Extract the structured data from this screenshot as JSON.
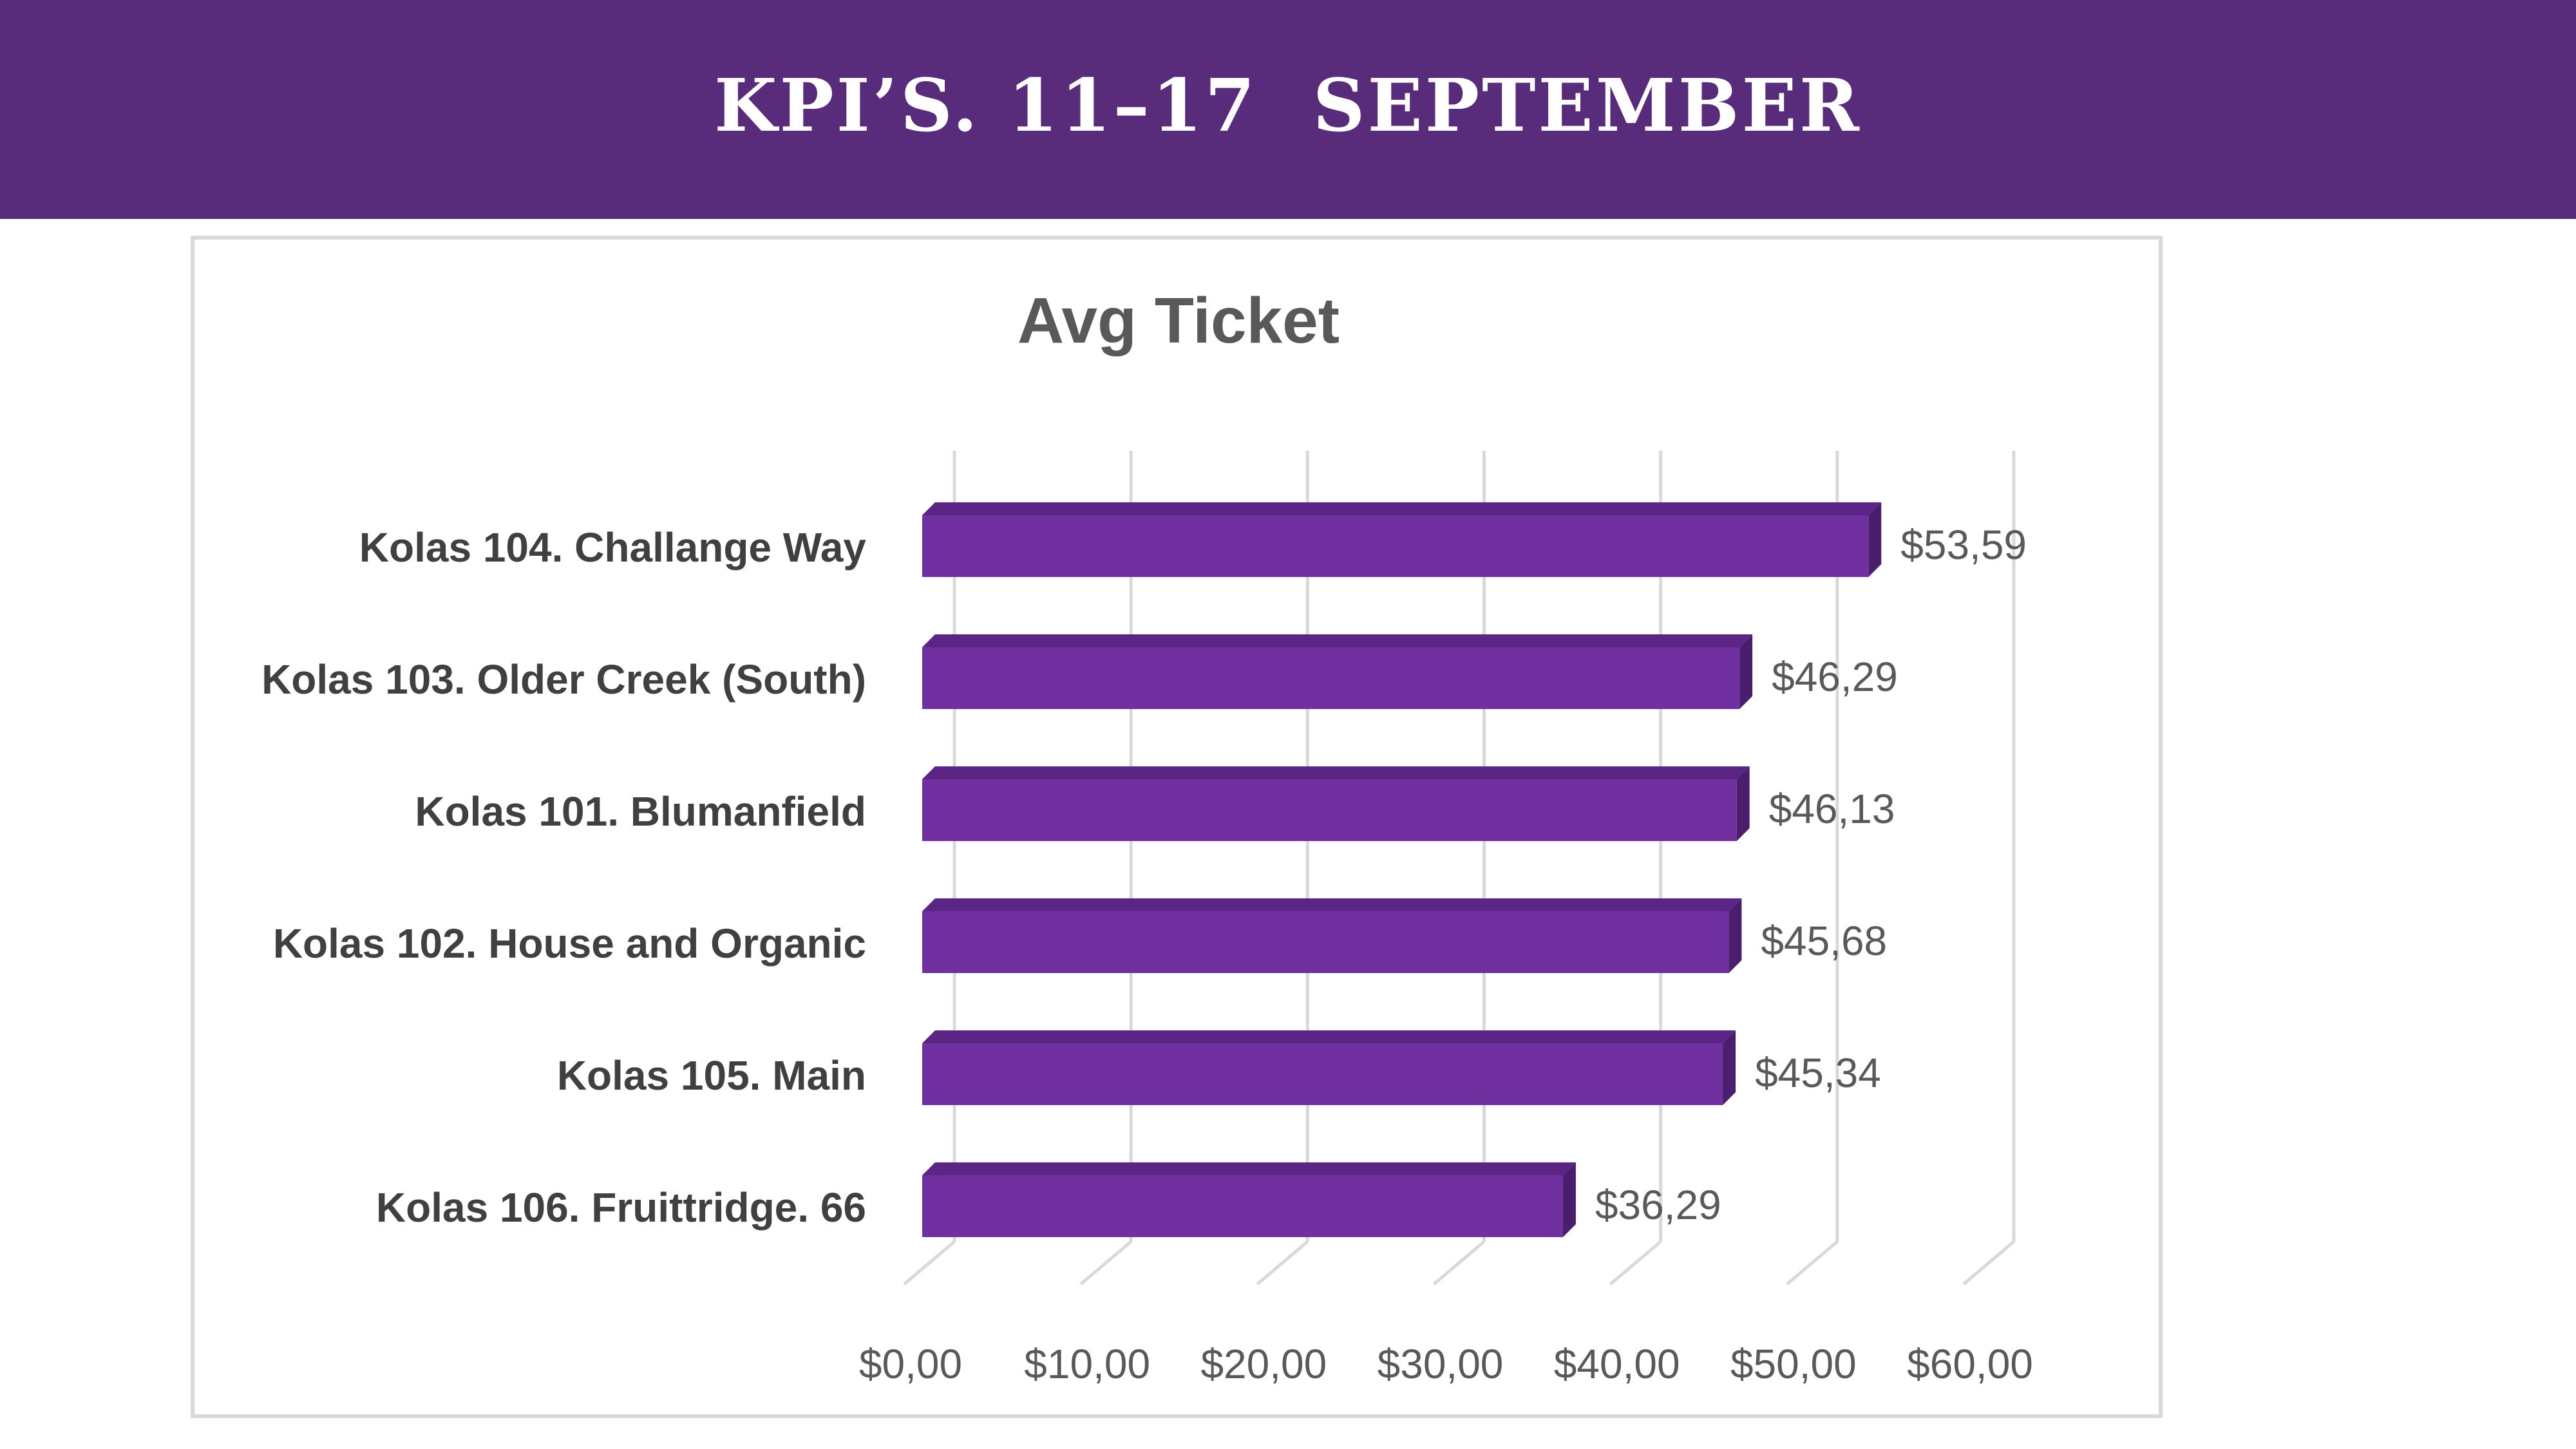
{
  "banner": {
    "title": "KPI’S. 11–17  SEPTEMBER"
  },
  "colors": {
    "banner_bg": "#582c7a",
    "bar_face": "#7030a0",
    "bar_top": "#5b2585",
    "bar_side": "#4a1e6c",
    "grid": "#d9d9d9",
    "text": "#595959",
    "label_text": "#404040"
  },
  "chart_data": {
    "type": "bar",
    "orientation": "horizontal",
    "style": "3d",
    "title": "Avg Ticket",
    "xlabel": "",
    "ylabel": "",
    "categories": [
      "Kolas 104. Challange Way",
      "Kolas 103. Older Creek (South)",
      "Kolas 101. Blumanfield",
      "Kolas 102. House and Organic",
      "Kolas 105. Main",
      "Kolas 106. Fruittridge. 66"
    ],
    "values": [
      53.59,
      46.29,
      46.13,
      45.68,
      45.34,
      36.29
    ],
    "data_labels": [
      "$53,59",
      "$46,29",
      "$46,13",
      "$45,68",
      "$45,34",
      "$36,29"
    ],
    "xlim": [
      0,
      60
    ],
    "xticks": [
      0,
      10,
      20,
      30,
      40,
      50,
      60
    ],
    "xtick_labels": [
      "$0,00",
      "$10,00",
      "$20,00",
      "$30,00",
      "$40,00",
      "$50,00",
      "$60,00"
    ],
    "grid": true,
    "legend": "none"
  }
}
